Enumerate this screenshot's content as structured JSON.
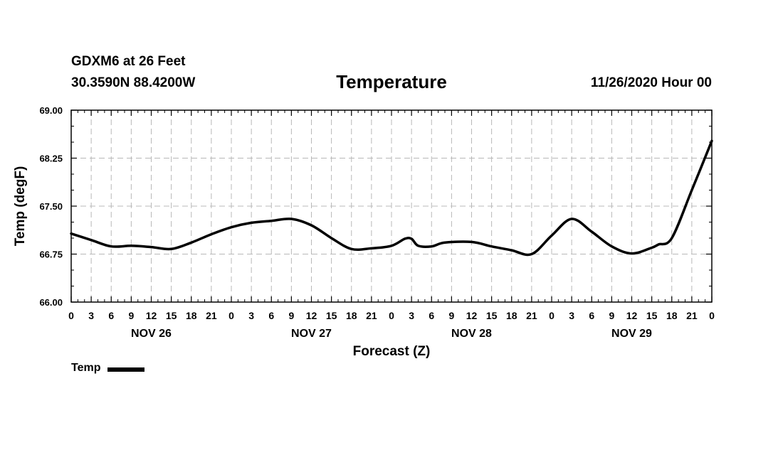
{
  "header": {
    "station": "GDXM6 at 26 Feet",
    "coords": "30.3590N 88.4200W",
    "runtime": "11/26/2020 Hour 00"
  },
  "chart_data": {
    "type": "line",
    "title": "Temperature",
    "xlabel": "Forecast (Z)",
    "ylabel": "Temp (degF)",
    "ylim": [
      66.0,
      69.0
    ],
    "yticks": [
      "66.00",
      "66.75",
      "67.50",
      "68.25",
      "69.00"
    ],
    "xlim_hours": [
      0,
      96
    ],
    "xtick_labels": [
      "0",
      "3",
      "6",
      "9",
      "12",
      "15",
      "18",
      "21",
      "0",
      "3",
      "6",
      "9",
      "12",
      "15",
      "18",
      "21",
      "0",
      "3",
      "6",
      "9",
      "12",
      "15",
      "18",
      "21",
      "0",
      "3",
      "6",
      "9",
      "12",
      "15",
      "18",
      "21",
      "0"
    ],
    "day_labels": [
      {
        "hour": 12,
        "label": "NOV 26"
      },
      {
        "hour": 36,
        "label": "NOV 27"
      },
      {
        "hour": 60,
        "label": "NOV 28"
      },
      {
        "hour": 84,
        "label": "NOV 29"
      }
    ],
    "grid": true,
    "legend": "bottom-left",
    "series": [
      {
        "name": "Temp",
        "color": "#000000",
        "x": [
          0,
          3,
          6,
          9,
          12,
          15,
          18,
          21,
          24,
          27,
          30,
          33,
          36,
          39,
          42,
          45,
          48,
          50,
          51,
          52,
          54,
          56,
          60,
          63,
          66,
          69,
          72,
          75,
          78,
          81,
          84,
          87,
          88,
          90,
          93,
          96
        ],
        "y": [
          67.07,
          66.97,
          66.87,
          66.88,
          66.86,
          66.83,
          66.93,
          67.06,
          67.17,
          67.24,
          67.27,
          67.3,
          67.2,
          67.0,
          66.83,
          66.84,
          66.88,
          66.99,
          66.99,
          66.88,
          66.87,
          66.93,
          66.94,
          66.87,
          66.81,
          66.75,
          67.04,
          67.3,
          67.1,
          66.87,
          66.76,
          66.85,
          66.9,
          67.0,
          67.75,
          68.52
        ]
      }
    ]
  }
}
